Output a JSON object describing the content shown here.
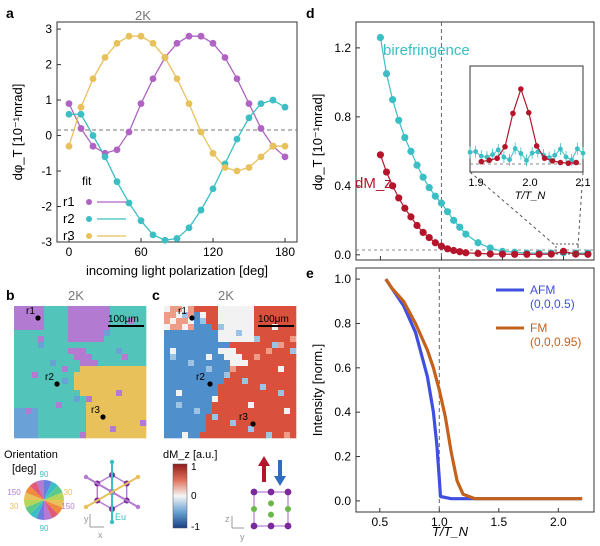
{
  "panels": {
    "a": {
      "letter": "a",
      "temp_label": "2K",
      "ylabel": "dφ_T  [10⁻¹mrad]",
      "xlabel": "incoming light polarization [deg]",
      "xticks": [
        "0",
        "60",
        "120",
        "180"
      ],
      "yticks": [
        "-3",
        "-2",
        "-1",
        "0",
        "1",
        "2",
        "3"
      ],
      "legend_title": "fit",
      "legend": [
        "r1",
        "r2",
        "r3"
      ]
    },
    "b": {
      "letter": "b",
      "temp_label": "2K",
      "scale": "100μm",
      "markers": [
        "r1",
        "r2",
        "r3"
      ],
      "orientation_title": "Orientation",
      "orientation_unit": "[deg]",
      "wheel_labels": [
        "90",
        "150",
        "30",
        "30",
        "150",
        "90"
      ],
      "eu_label": "Eu"
    },
    "c": {
      "letter": "c",
      "temp_label": "2K",
      "scale": "100μm",
      "markers": [
        "r1",
        "r2",
        "r3"
      ],
      "colorbar_title": "dM_z [a.u.]",
      "colorbar_ticks": [
        "1",
        "0",
        "-1"
      ]
    },
    "d": {
      "letter": "d",
      "ylabel": "dφ_T  [10⁻¹mrad]",
      "yticks": [
        "0.0",
        "0.4",
        "0.8",
        "1.2"
      ],
      "series_labels": [
        "birefringence",
        "dM_z"
      ],
      "inset_xticks": [
        "1.9",
        "2.0",
        "2.1"
      ],
      "inset_xlabel": "T/T_N"
    },
    "e": {
      "letter": "e",
      "ylabel": "Intensity [norm.]",
      "xlabel": "T/T_N",
      "xticks": [
        "0.5",
        "1.0",
        "1.5",
        "2.0"
      ],
      "yticks": [
        "0.0",
        "0.2",
        "0.4",
        "0.6",
        "0.8",
        "1.0"
      ],
      "legend": [
        {
          "name": "AFM",
          "sub": "(0,0,0.5)"
        },
        {
          "name": "FM",
          "sub": "(0,0,0.95)"
        }
      ]
    }
  },
  "colors": {
    "r1": "#b063c4",
    "r2": "#3bbfc4",
    "r3": "#e9c15a",
    "afm": "#3f4fe0",
    "fm": "#c4621c",
    "dmz": "#b5152b",
    "bir": "#3bbfc4"
  },
  "chart_data": [
    {
      "type": "scatter",
      "panel": "a",
      "xlabel": "incoming light polarization [deg]",
      "ylabel": "dφ_T [10⁻¹mrad]",
      "xlim": [
        -10,
        190
      ],
      "ylim": [
        -3,
        3.2
      ],
      "x": [
        0,
        10,
        20,
        30,
        40,
        50,
        60,
        70,
        80,
        90,
        100,
        110,
        120,
        130,
        140,
        150,
        160,
        170,
        180
      ],
      "series": [
        {
          "name": "r1",
          "values": [
            0.9,
            0.2,
            -0.3,
            -0.5,
            -0.4,
            0.1,
            0.9,
            1.6,
            2.2,
            2.6,
            2.8,
            2.8,
            2.6,
            2.2,
            1.6,
            0.9,
            0.2,
            -0.3,
            -0.6
          ]
        },
        {
          "name": "r2",
          "values": [
            0.6,
            0.6,
            0.0,
            -0.6,
            -1.3,
            -1.9,
            -2.4,
            -2.8,
            -2.95,
            -2.9,
            -2.6,
            -2.1,
            -1.5,
            -0.8,
            -0.1,
            0.5,
            0.9,
            1.0,
            0.8
          ]
        },
        {
          "name": "r3",
          "values": [
            -0.3,
            0.8,
            1.6,
            2.2,
            2.6,
            2.8,
            2.8,
            2.6,
            2.2,
            1.6,
            0.9,
            0.1,
            -0.5,
            -0.9,
            -1.0,
            -0.9,
            -0.6,
            -0.3,
            -0.3
          ]
        }
      ]
    },
    {
      "type": "scatter",
      "panel": "d",
      "ylabel": "dφ_T [10⁻¹mrad]",
      "xlim": [
        0.3,
        2.25
      ],
      "ylim": [
        -0.03,
        1.35
      ],
      "series": [
        {
          "name": "birefringence",
          "x": [
            0.5,
            0.55,
            0.6,
            0.65,
            0.7,
            0.75,
            0.8,
            0.85,
            0.9,
            0.95,
            1.0,
            1.05,
            1.1,
            1.15,
            1.2,
            1.3,
            1.4,
            1.5,
            1.6,
            1.7,
            1.8,
            1.9,
            2.0,
            2.1,
            2.2
          ],
          "values": [
            1.26,
            1.05,
            0.9,
            0.78,
            0.68,
            0.6,
            0.52,
            0.45,
            0.39,
            0.34,
            0.3,
            0.25,
            0.2,
            0.16,
            0.12,
            0.07,
            0.04,
            0.02,
            0.015,
            0.01,
            0.01,
            0.01,
            0.012,
            0.01,
            0.01
          ]
        },
        {
          "name": "dM_z",
          "x": [
            0.5,
            0.55,
            0.6,
            0.65,
            0.7,
            0.75,
            0.8,
            0.85,
            0.9,
            0.95,
            1.0,
            1.05,
            1.1,
            1.15,
            1.2,
            1.3,
            1.4,
            1.5,
            1.6,
            1.7,
            1.8,
            1.9,
            2.0,
            2.1,
            2.2
          ],
          "values": [
            0.58,
            0.48,
            0.4,
            0.33,
            0.27,
            0.22,
            0.17,
            0.13,
            0.1,
            0.07,
            0.05,
            0.035,
            0.025,
            0.018,
            0.012,
            0.008,
            0.005,
            0.004,
            0.003,
            0.003,
            0.003,
            0.004,
            0.02,
            0.004,
            0.003
          ]
        }
      ]
    },
    {
      "type": "line",
      "panel": "e",
      "xlabel": "T/T_N",
      "ylabel": "Intensity [norm.]",
      "xlim": [
        0.3,
        2.3
      ],
      "ylim": [
        -0.05,
        1.05
      ],
      "series": [
        {
          "name": "AFM (0,0,0.5)",
          "x": [
            0.55,
            0.6,
            0.7,
            0.8,
            0.9,
            0.95,
            0.98,
            1.0,
            1.01,
            1.1,
            1.5,
            2.0,
            2.2
          ],
          "values": [
            1.0,
            0.96,
            0.88,
            0.76,
            0.56,
            0.4,
            0.25,
            0.1,
            0.02,
            0.01,
            0.01,
            0.01,
            0.01
          ]
        },
        {
          "name": "FM (0,0,0.95)",
          "x": [
            0.55,
            0.6,
            0.7,
            0.8,
            0.9,
            0.95,
            1.0,
            1.05,
            1.1,
            1.15,
            1.2,
            1.3,
            1.5,
            2.0,
            2.2
          ],
          "values": [
            1.0,
            0.96,
            0.9,
            0.8,
            0.68,
            0.6,
            0.5,
            0.38,
            0.22,
            0.09,
            0.03,
            0.01,
            0.01,
            0.01,
            0.01
          ]
        }
      ]
    }
  ]
}
